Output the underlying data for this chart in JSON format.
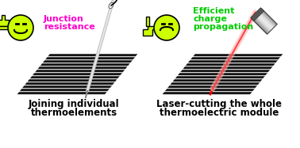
{
  "background_color": "#ffffff",
  "left_title_line1": "Joining individual",
  "left_title_line2": "thermoelements",
  "right_title_line1": "Laser-cutting the whole",
  "right_title_line2": "thermoelectric module",
  "left_label_line1": "Junction",
  "left_label_line2": "resistance",
  "left_label_color": "#ff00cc",
  "right_label_line1": "Efficient",
  "right_label_line2": "charge",
  "right_label_line3": "propagation",
  "right_label_color": "#00cc00",
  "title_fontsize": 8.5,
  "label_fontsize": 8,
  "emoji_color": "#ccff00",
  "figure_width": 3.78,
  "figure_height": 1.87,
  "dpi": 100
}
